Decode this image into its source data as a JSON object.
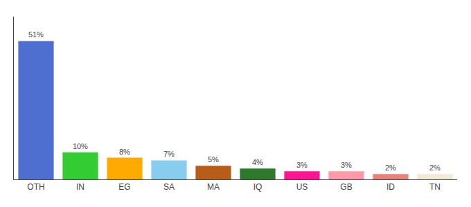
{
  "chart_data": {
    "type": "bar",
    "categories": [
      "OTH",
      "IN",
      "EG",
      "SA",
      "MA",
      "IQ",
      "US",
      "GB",
      "ID",
      "TN"
    ],
    "values": [
      51,
      10,
      8,
      7,
      5,
      4,
      3,
      3,
      2,
      2
    ],
    "value_labels": [
      "51%",
      "10%",
      "8%",
      "7%",
      "5%",
      "4%",
      "3%",
      "3%",
      "2%",
      "2%"
    ],
    "colors": [
      "#4f6fd0",
      "#33cc33",
      "#ffaa00",
      "#88ccee",
      "#b85c1a",
      "#2d7a2d",
      "#ff1493",
      "#ff99aa",
      "#e8837a",
      "#f0ead6"
    ],
    "ylim": [
      0,
      60
    ],
    "data_labels": true,
    "tick_labels": "x",
    "grid": false
  }
}
